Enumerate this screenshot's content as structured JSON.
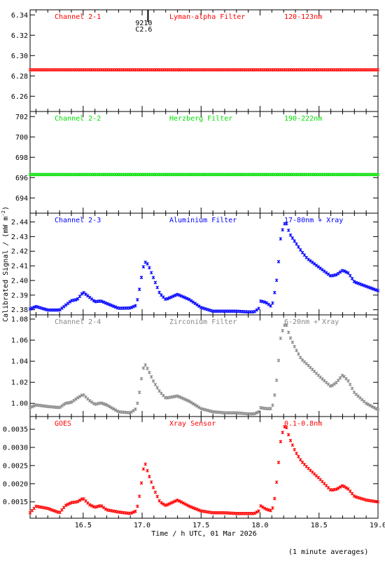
{
  "footer_note": "(1 minute averages)",
  "colors": {
    "red": "#ff0000",
    "green": "#00e000",
    "blue": "#0000ff",
    "gray": "#888888"
  },
  "chart_data": {
    "type": "scatter",
    "xlabel": "Time / h UTC, 01 Mar 2026",
    "ylabel": "Calibrated Signal / (mW m-2)",
    "xlim": [
      16.05,
      19.0
    ],
    "x_ticks": [
      "16.5",
      "17.0",
      "17.5",
      "18.0",
      "18.5",
      "19.0"
    ],
    "flare_marker": {
      "x": 17.02,
      "labels": [
        "9210",
        "C2.6"
      ]
    },
    "panels": [
      {
        "name": "Channel 2-1",
        "filter": "Lyman-alpha Filter",
        "band": "120-123nm",
        "color": "#ff0000",
        "ylim": [
          6.245,
          6.345
        ],
        "y_ticks": [
          "6.26",
          "6.28",
          "6.30",
          "6.32",
          "6.34"
        ],
        "series": [
          {
            "x": [
              16.05,
              17.0,
              18.0,
              19.0
            ],
            "y": [
              6.286,
              6.286,
              6.286,
              6.286
            ]
          }
        ]
      },
      {
        "name": "Channel 2-2",
        "filter": "Herzberg Filter",
        "band": "190-222nm",
        "color": "#00e000",
        "ylim": [
          692.5,
          702.5
        ],
        "y_ticks": [
          "694",
          "696",
          "698",
          "700",
          "702"
        ],
        "series": [
          {
            "x": [
              16.05,
              17.0,
              18.0,
              19.0
            ],
            "y": [
              696.3,
              696.3,
              696.3,
              696.3
            ]
          }
        ]
      },
      {
        "name": "Channel 2-3",
        "filter": "Aluminium Filter",
        "band": "17-80nm + Xray",
        "color": "#0000ff",
        "ylim": [
          2.3765,
          2.446
        ],
        "y_ticks": [
          "2.38",
          "2.39",
          "2.40",
          "2.41",
          "2.42",
          "2.43",
          "2.44"
        ],
        "series": [
          {
            "x": [
              16.05,
              16.1,
              16.2,
              16.3,
              16.35,
              16.4,
              16.45,
              16.5,
              16.55,
              16.6,
              16.65,
              16.7,
              16.8,
              16.9,
              16.95,
              16.97,
              17.0,
              17.02,
              17.05,
              17.1,
              17.15,
              17.2,
              17.3,
              17.4,
              17.5,
              17.6,
              17.7,
              17.8,
              17.9,
              17.95,
              17.99,
              18.0,
              18.05,
              18.1,
              18.12,
              18.15,
              18.17,
              18.2,
              18.22,
              18.25,
              18.3,
              18.35,
              18.4,
              18.5,
              18.6,
              18.65,
              18.7,
              18.75,
              18.8,
              18.9,
              19.0
            ],
            "y": [
              2.3805,
              2.3822,
              2.3798,
              2.3798,
              2.383,
              2.3862,
              2.387,
              2.392,
              2.3888,
              2.3855,
              2.386,
              2.3843,
              2.381,
              2.3812,
              2.383,
              2.3905,
              2.405,
              2.413,
              2.411,
              2.401,
              2.391,
              2.387,
              2.3905,
              2.387,
              2.3815,
              2.379,
              2.379,
              2.379,
              2.3785,
              2.3785,
              2.381,
              2.386,
              2.385,
              2.382,
              2.39,
              2.405,
              2.427,
              2.438,
              2.44,
              2.432,
              2.426,
              2.42,
              2.415,
              2.409,
              2.403,
              2.404,
              2.407,
              2.405,
              2.399,
              2.396,
              2.393
            ]
          }
        ]
      },
      {
        "name": "Channel 2-4",
        "filter": "Zirconium Filter",
        "band": "6-20nm + Xray",
        "color": "#888888",
        "ylim": [
          0.9875,
          1.084
        ],
        "y_ticks": [
          "1.00",
          "1.02",
          "1.04",
          "1.06",
          "1.08"
        ],
        "series": [
          {
            "x": [
              16.05,
              16.1,
              16.2,
              16.3,
              16.35,
              16.4,
              16.45,
              16.5,
              16.55,
              16.6,
              16.65,
              16.7,
              16.8,
              16.9,
              16.95,
              16.97,
              17.0,
              17.02,
              17.05,
              17.1,
              17.15,
              17.2,
              17.3,
              17.4,
              17.5,
              17.6,
              17.7,
              17.8,
              17.9,
              17.95,
              17.99,
              18.0,
              18.05,
              18.1,
              18.12,
              18.15,
              18.17,
              18.2,
              18.22,
              18.25,
              18.3,
              18.35,
              18.4,
              18.5,
              18.6,
              18.65,
              18.7,
              18.75,
              18.8,
              18.9,
              19.0
            ],
            "y": [
              0.996,
              0.9985,
              0.997,
              0.996,
              1.0,
              1.001,
              1.005,
              1.0085,
              1.003,
              0.999,
              1.0005,
              0.9985,
              0.992,
              0.991,
              0.995,
              1.005,
              1.028,
              1.038,
              1.032,
              1.02,
              1.011,
              1.005,
              1.007,
              1.002,
              0.995,
              0.992,
              0.991,
              0.991,
              0.99,
              0.99,
              0.992,
              0.996,
              0.995,
              0.995,
              1.005,
              1.03,
              1.06,
              1.073,
              1.076,
              1.064,
              1.052,
              1.042,
              1.037,
              1.026,
              1.016,
              1.02,
              1.027,
              1.021,
              1.01,
              1.0,
              0.994
            ]
          }
        ]
      },
      {
        "name": "GOES",
        "filter": "Xray Sensor",
        "band": "0.1-0.8nm",
        "color": "#ff0000",
        "ylim": [
          0.00105,
          0.00385
        ],
        "y_ticks": [
          "0.0015",
          "0.0020",
          "0.0025",
          "0.0030",
          "0.0035"
        ],
        "series": [
          {
            "x": [
              16.05,
              16.1,
              16.2,
              16.3,
              16.35,
              16.4,
              16.45,
              16.5,
              16.55,
              16.6,
              16.65,
              16.7,
              16.8,
              16.9,
              16.95,
              16.97,
              17.0,
              17.02,
              17.05,
              17.1,
              17.15,
              17.2,
              17.3,
              17.4,
              17.5,
              17.6,
              17.7,
              17.8,
              17.9,
              17.95,
              17.99,
              18.0,
              18.05,
              18.1,
              18.12,
              18.15,
              18.17,
              18.2,
              18.22,
              18.25,
              18.3,
              18.35,
              18.4,
              18.5,
              18.6,
              18.65,
              18.7,
              18.75,
              18.8,
              18.9,
              19.0
            ],
            "y": [
              0.0012,
              0.00138,
              0.00132,
              0.0012,
              0.0014,
              0.00148,
              0.0015,
              0.0016,
              0.00143,
              0.00135,
              0.0014,
              0.00128,
              0.00122,
              0.00118,
              0.00125,
              0.0015,
              0.00215,
              0.00262,
              0.0023,
              0.00185,
              0.0015,
              0.0014,
              0.00155,
              0.00138,
              0.00125,
              0.0012,
              0.0012,
              0.00118,
              0.00118,
              0.00118,
              0.00125,
              0.0014,
              0.0013,
              0.00125,
              0.0015,
              0.0023,
              0.0031,
              0.00355,
              0.0036,
              0.00325,
              0.00288,
              0.00262,
              0.00245,
              0.00215,
              0.00182,
              0.00185,
              0.00195,
              0.00185,
              0.00165,
              0.00155,
              0.0015
            ]
          }
        ]
      }
    ]
  }
}
